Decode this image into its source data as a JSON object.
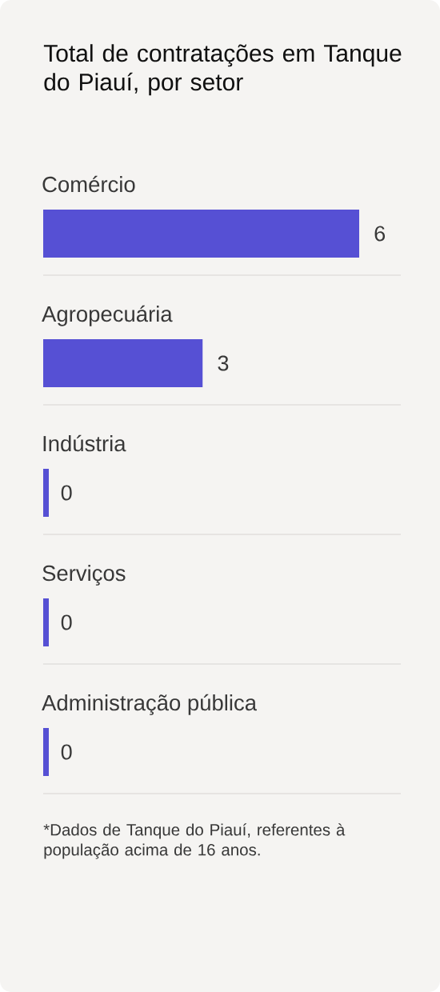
{
  "chart_data": {
    "type": "bar",
    "orientation": "horizontal",
    "title": "Total de contratações em Tanque do Piauí, por setor",
    "categories": [
      "Comércio",
      "Agropecuária",
      "Indústria",
      "Serviços",
      "Administração pública"
    ],
    "values": [
      6,
      3,
      0,
      0,
      0
    ],
    "color": "#5650d4",
    "data_labels": true,
    "annotations": [
      "*Dados de Tanque do Piauí, referentes à população acima de 16 anos."
    ]
  }
}
